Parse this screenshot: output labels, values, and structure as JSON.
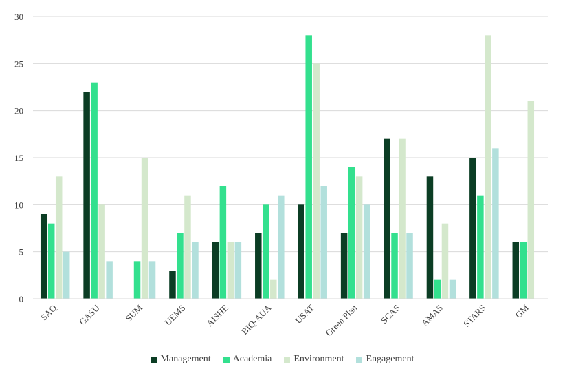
{
  "chart_data": {
    "type": "bar",
    "categories": [
      "SAQ",
      "GASU",
      "SUM",
      "UEMS",
      "AISHE",
      "BIQ-AUA",
      "USAT",
      "Green Plan",
      "SCAS",
      "AMAS",
      "STARS",
      "GM"
    ],
    "series": [
      {
        "name": "Management",
        "color": "#0b3d24",
        "values": [
          9,
          22,
          0,
          3,
          6,
          7,
          10,
          7,
          17,
          13,
          15,
          6
        ]
      },
      {
        "name": "Academia",
        "color": "#33e08e",
        "values": [
          8,
          23,
          4,
          7,
          12,
          10,
          28,
          14,
          7,
          2,
          11,
          6
        ]
      },
      {
        "name": "Environment",
        "color": "#d4e8cc",
        "values": [
          13,
          10,
          15,
          11,
          6,
          2,
          25,
          13,
          17,
          8,
          28,
          21
        ]
      },
      {
        "name": "Engagement",
        "color": "#b2e0dc",
        "values": [
          5,
          4,
          4,
          6,
          6,
          11,
          12,
          10,
          7,
          2,
          16,
          0
        ]
      }
    ],
    "yticks": [
      0,
      5,
      10,
      15,
      20,
      25,
      30
    ],
    "ylim": [
      0,
      30
    ],
    "grid": true,
    "legend_position": "bottom",
    "title": "",
    "xlabel": "",
    "ylabel": ""
  }
}
